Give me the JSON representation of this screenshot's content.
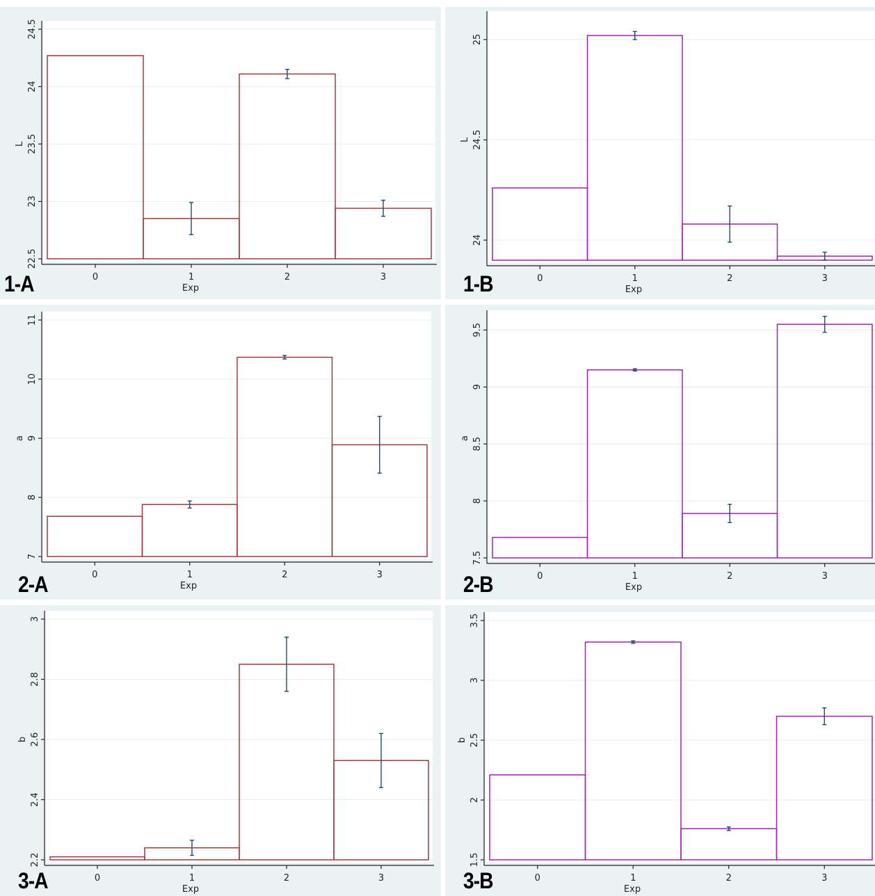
{
  "colors": {
    "panel_bg": "#eaf2f3",
    "plot_bg": "#ffffff",
    "grid": "#e4ecee",
    "error": "#1a4a6e",
    "series_A": "#a03a3a",
    "series_B": "#a020b0"
  },
  "chart_data": [
    {
      "id": "1-A",
      "label": "1-A",
      "type": "bar",
      "xlabel": "Exp",
      "ylabel": "L",
      "categories": [
        "0",
        "1",
        "2",
        "3"
      ],
      "values": [
        24.27,
        22.85,
        24.11,
        22.94
      ],
      "errors": [
        null,
        0.14,
        0.04,
        0.07
      ],
      "ylim": [
        22.5,
        24.5
      ],
      "yticks": [
        22.5,
        23,
        23.5,
        24,
        24.5
      ],
      "ytick_labels": [
        "22.5",
        "23",
        "23.5",
        "24",
        "24.5"
      ],
      "grid": true,
      "color": "#a03a3a"
    },
    {
      "id": "1-B",
      "label": "1-B",
      "type": "bar",
      "xlabel": "Exp",
      "ylabel": "L",
      "categories": [
        "0",
        "1",
        "2",
        "3"
      ],
      "values": [
        24.26,
        25.02,
        24.08,
        23.92
      ],
      "errors": [
        null,
        0.02,
        0.09,
        0.02
      ],
      "ylim": [
        23.9,
        25.1
      ],
      "yticks": [
        24,
        24.5,
        25
      ],
      "ytick_labels": [
        "24",
        "24.5",
        "25"
      ],
      "grid": true,
      "color": "#a020b0"
    },
    {
      "id": "2-A",
      "label": "2-A",
      "type": "bar",
      "xlabel": "Exp",
      "ylabel": "a",
      "categories": [
        "0",
        "1",
        "2",
        "3"
      ],
      "values": [
        7.68,
        7.88,
        10.37,
        8.89
      ],
      "errors": [
        null,
        0.06,
        0.03,
        0.48
      ],
      "ylim": [
        7,
        11
      ],
      "yticks": [
        7,
        8,
        9,
        10,
        11
      ],
      "ytick_labels": [
        "7",
        "8",
        "9",
        "10",
        "11"
      ],
      "grid": true,
      "color": "#a03a3a"
    },
    {
      "id": "2-B",
      "label": "2-B",
      "type": "bar",
      "xlabel": "Exp",
      "ylabel": "a",
      "categories": [
        "0",
        "1",
        "2",
        "3"
      ],
      "values": [
        7.68,
        9.15,
        7.89,
        9.55
      ],
      "errors": [
        null,
        0.01,
        0.08,
        0.07
      ],
      "ylim": [
        7.5,
        9.6
      ],
      "yticks": [
        7.5,
        8,
        8.5,
        9,
        9.5
      ],
      "ytick_labels": [
        "7.5",
        "8",
        "8.5",
        "9",
        "9.5"
      ],
      "grid": true,
      "color": "#a020b0"
    },
    {
      "id": "3-A",
      "label": "3-A",
      "type": "bar",
      "xlabel": "Exp",
      "ylabel": "b",
      "categories": [
        "0",
        "1",
        "2",
        "3"
      ],
      "values": [
        2.21,
        2.24,
        2.85,
        2.53
      ],
      "errors": [
        null,
        0.025,
        0.09,
        0.09
      ],
      "ylim": [
        2.2,
        3.0
      ],
      "yticks": [
        2.2,
        2.4,
        2.6,
        2.8,
        3.0
      ],
      "ytick_labels": [
        "2.2",
        "2.4",
        "2.6",
        "2.8",
        "3"
      ],
      "grid": true,
      "color": "#a03a3a"
    },
    {
      "id": "3-B",
      "label": "3-B",
      "type": "bar",
      "xlabel": "Exp",
      "ylabel": "b",
      "categories": [
        "0",
        "1",
        "2",
        "3"
      ],
      "values": [
        2.21,
        3.32,
        1.76,
        2.7
      ],
      "errors": [
        null,
        0.01,
        0.015,
        0.07
      ],
      "ylim": [
        1.5,
        3.5
      ],
      "yticks": [
        1.5,
        2,
        2.5,
        3,
        3.5
      ],
      "ytick_labels": [
        "1.5",
        "2",
        "2.5",
        "3",
        "3.5"
      ],
      "grid": true,
      "color": "#a020b0"
    }
  ]
}
